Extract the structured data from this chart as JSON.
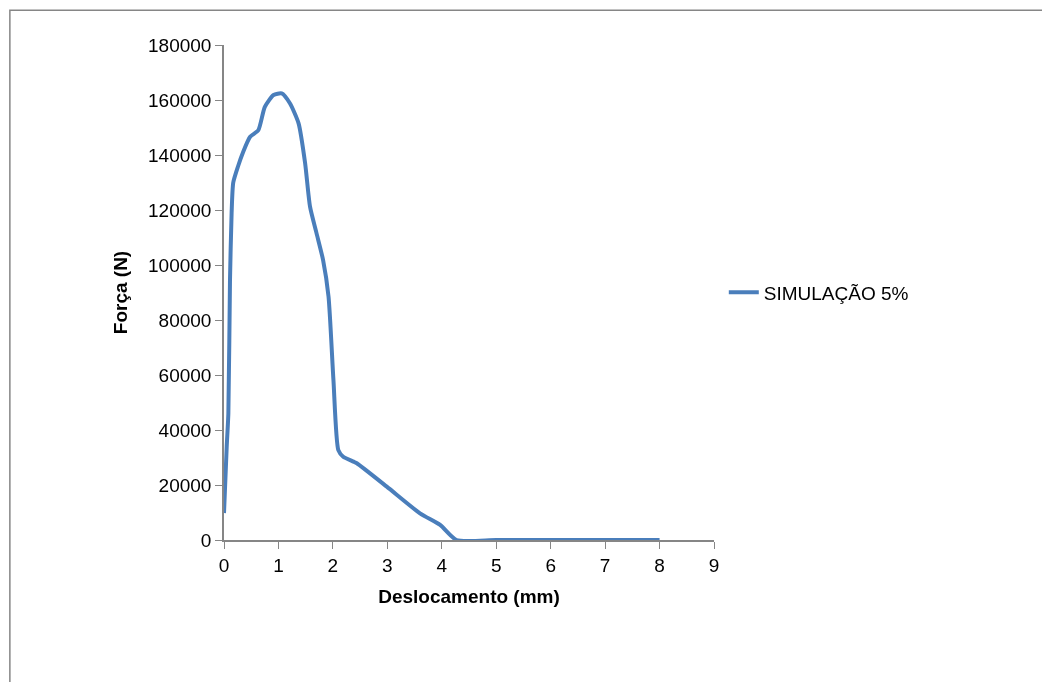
{
  "chart_data": {
    "type": "line",
    "xlabel": "Deslocamento (mm)",
    "ylabel": "Força (N)",
    "xlim": [
      0,
      9
    ],
    "xticks": [
      0,
      1,
      2,
      3,
      4,
      5,
      6,
      7,
      8,
      9
    ],
    "ylim": [
      0,
      180000
    ],
    "yticks": [
      0,
      20000,
      40000,
      60000,
      80000,
      100000,
      120000,
      140000,
      160000,
      180000
    ],
    "legend": "right",
    "marker": "none",
    "line_style": "solid",
    "series": [
      {
        "name": "SIMULAÇÃO 5%",
        "color": "#4a7ebb",
        "x": [
          0,
          0.05,
          0.08,
          0.11,
          0.14,
          0.17,
          0.26,
          0.35,
          0.48,
          0.63,
          0.75,
          0.91,
          1.06,
          1.21,
          1.37,
          1.49,
          1.58,
          1.7,
          1.82,
          1.92,
          2.01,
          2.1,
          2.19,
          2.38,
          2.44,
          2.99,
          3.6,
          3.97,
          4.27,
          5,
          6,
          7,
          8
        ],
        "values": [
          9800,
          34000,
          46000,
          94500,
          119000,
          130000,
          136000,
          141000,
          146600,
          149000,
          157500,
          161800,
          162400,
          158800,
          151500,
          137000,
          121200,
          111500,
          101800,
          88500,
          58200,
          32700,
          30300,
          28500,
          27900,
          19400,
          9700,
          5500,
          0,
          0,
          0,
          0,
          0
        ]
      }
    ]
  }
}
